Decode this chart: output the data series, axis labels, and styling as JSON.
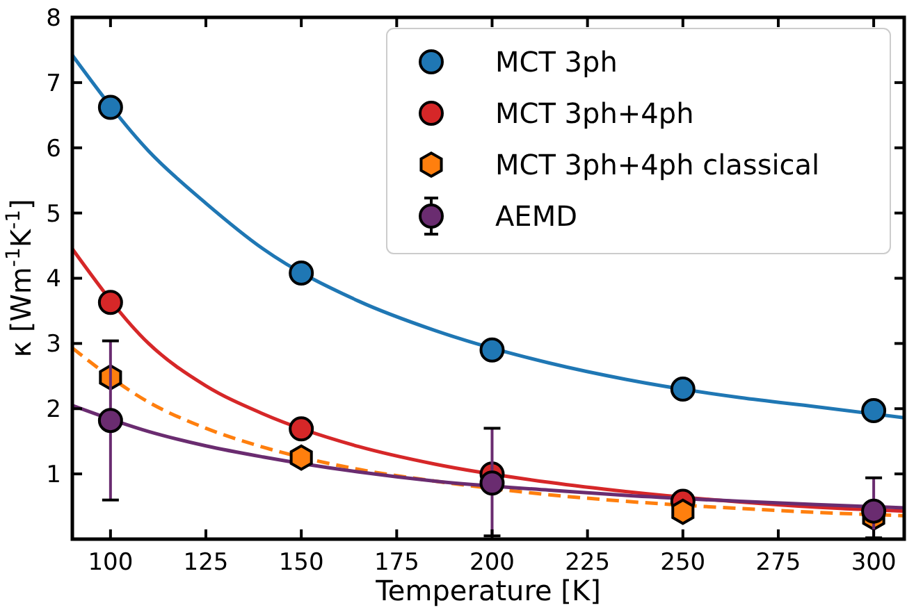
{
  "chart_data": {
    "type": "scatter",
    "xlabel": "Temperature [K]",
    "ylabel": "κ [Wm$^{-1}$K$^{-1}$]",
    "xlim": [
      90,
      308
    ],
    "ylim": [
      0,
      8
    ],
    "xticks": [
      100,
      125,
      150,
      175,
      200,
      225,
      250,
      275,
      300
    ],
    "yticks": [
      1,
      2,
      3,
      4,
      5,
      6,
      7,
      8
    ],
    "grid": false,
    "legend": "top right",
    "series": [
      {
        "type": "line",
        "color": "#1f77b4",
        "line_style": "solid",
        "x": [
          90,
          110,
          125,
          140,
          165,
          185,
          215,
          235,
          265,
          285,
          308
        ],
        "values": [
          7.42,
          5.95,
          5.15,
          4.45,
          3.65,
          3.2,
          2.7,
          2.45,
          2.17,
          2.03,
          1.86
        ]
      },
      {
        "type": "line",
        "color": "#d62728",
        "line_style": "solid",
        "x": [
          90,
          110,
          125,
          140,
          165,
          185,
          215,
          235,
          265,
          285,
          308
        ],
        "values": [
          4.45,
          3.0,
          2.35,
          1.92,
          1.42,
          1.15,
          0.87,
          0.73,
          0.57,
          0.49,
          0.43
        ]
      },
      {
        "type": "line",
        "color": "#ff7f0e",
        "line_style": "dashed",
        "x": [
          90,
          110,
          125,
          140,
          165,
          185,
          215,
          235,
          265,
          285,
          308
        ],
        "values": [
          2.93,
          2.1,
          1.7,
          1.41,
          1.07,
          0.89,
          0.68,
          0.58,
          0.47,
          0.41,
          0.36
        ]
      },
      {
        "type": "line",
        "color": "#6a2c70",
        "line_style": "solid",
        "x": [
          90,
          110,
          125,
          140,
          165,
          185,
          215,
          235,
          265,
          285,
          308
        ],
        "values": [
          2.05,
          1.65,
          1.43,
          1.26,
          1.03,
          0.89,
          0.75,
          0.67,
          0.58,
          0.53,
          0.48
        ]
      },
      {
        "name": "MCT 3ph",
        "color": "#1f77b4",
        "marker": "circle",
        "x": [
          100,
          150,
          200,
          250,
          300
        ],
        "values": [
          6.62,
          4.08,
          2.9,
          2.3,
          1.97
        ]
      },
      {
        "name": "MCT 3ph+4ph",
        "color": "#d62728",
        "marker": "circle",
        "x": [
          100,
          150,
          200,
          250
        ],
        "values": [
          3.63,
          1.69,
          1.0,
          0.58
        ]
      },
      {
        "name": "MCT 3ph+4ph classical",
        "color": "#ff7f0e",
        "x": [
          100,
          150,
          250,
          300
        ],
        "values": [
          2.48,
          1.25,
          0.42,
          0.33
        ]
      },
      {
        "name": "AEMD",
        "color": "#6a2c70",
        "marker": "circle",
        "x": [
          100,
          200,
          300
        ],
        "values": [
          1.82,
          0.86,
          0.43
        ],
        "errors": [
          [
            0.6,
            3.04
          ],
          [
            0.05,
            1.7
          ],
          [
            0.02,
            0.94
          ]
        ]
      }
    ]
  }
}
